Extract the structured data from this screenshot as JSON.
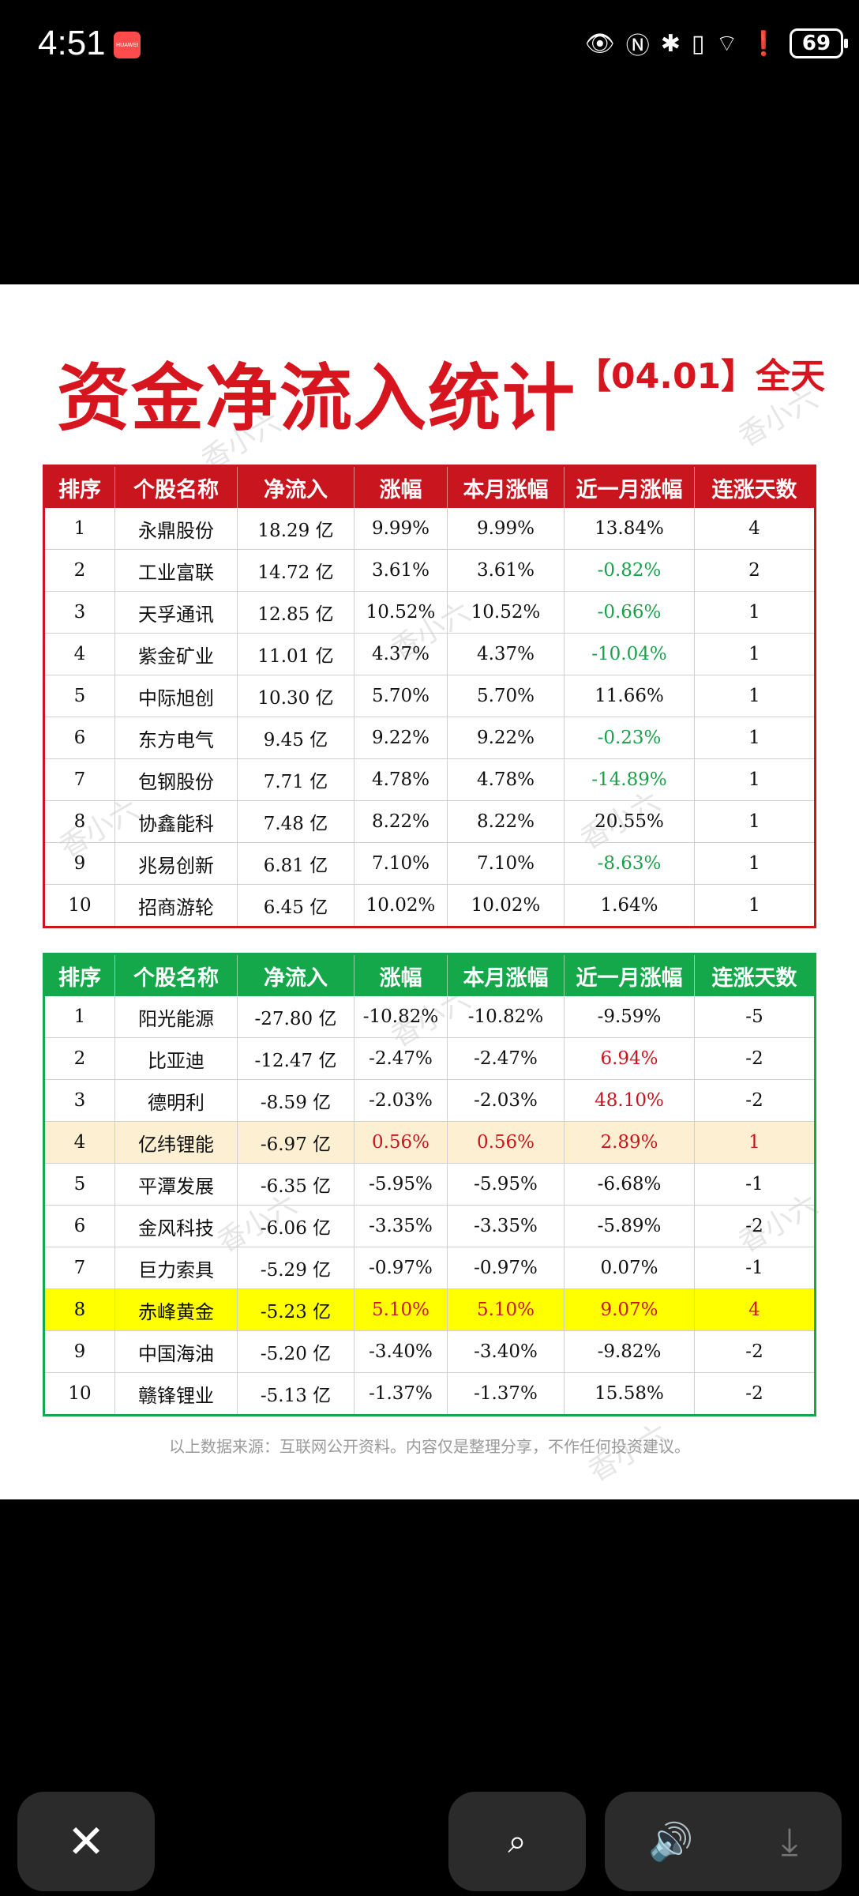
{
  "status_bar": {
    "time": "4:51",
    "app_badge": "HUAWEI",
    "icons": [
      "eye-icon",
      "nfc-icon",
      "bluetooth-icon",
      "vibrate-icon",
      "wifi-icon",
      "alert-icon"
    ],
    "battery": "69"
  },
  "image": {
    "title": "资金净流入统计",
    "date_tag": "【04.01】全天",
    "watermark": "香小六",
    "colors": {
      "title_red": "#d7151f",
      "inflow_header": "#c8151e",
      "outflow_header": "#14a84a",
      "negative_green": "#1aa04a",
      "highlight_yellow": "#ffff00",
      "highlight_beige": "#fdf0d2"
    },
    "headers": [
      "排序",
      "个股名称",
      "净流入",
      "涨幅",
      "本月涨幅",
      "近一月涨幅",
      "连涨天数"
    ],
    "inflow_rows": [
      [
        "1",
        "永鼎股份",
        "18.29 亿",
        "9.99%",
        "9.99%",
        "13.84%",
        "4"
      ],
      [
        "2",
        "工业富联",
        "14.72 亿",
        "3.61%",
        "3.61%",
        "-0.82%",
        "2"
      ],
      [
        "3",
        "天孚通讯",
        "12.85 亿",
        "10.52%",
        "10.52%",
        "-0.66%",
        "1"
      ],
      [
        "4",
        "紫金矿业",
        "11.01 亿",
        "4.37%",
        "4.37%",
        "-10.04%",
        "1"
      ],
      [
        "5",
        "中际旭创",
        "10.30 亿",
        "5.70%",
        "5.70%",
        "11.66%",
        "1"
      ],
      [
        "6",
        "东方电气",
        "9.45 亿",
        "9.22%",
        "9.22%",
        "-0.23%",
        "1"
      ],
      [
        "7",
        "包钢股份",
        "7.71 亿",
        "4.78%",
        "4.78%",
        "-14.89%",
        "1"
      ],
      [
        "8",
        "协鑫能科",
        "7.48 亿",
        "8.22%",
        "8.22%",
        "20.55%",
        "1"
      ],
      [
        "9",
        "兆易创新",
        "6.81 亿",
        "7.10%",
        "7.10%",
        "-8.63%",
        "1"
      ],
      [
        "10",
        "招商游轮",
        "6.45 亿",
        "10.02%",
        "10.02%",
        "1.64%",
        "1"
      ]
    ],
    "outflow_rows": [
      [
        "1",
        "阳光能源",
        "-27.80 亿",
        "-10.82%",
        "-10.82%",
        "-9.59%",
        "-5"
      ],
      [
        "2",
        "比亚迪",
        "-12.47 亿",
        "-2.47%",
        "-2.47%",
        "6.94%",
        "-2"
      ],
      [
        "3",
        "德明利",
        "-8.59 亿",
        "-2.03%",
        "-2.03%",
        "48.10%",
        "-2"
      ],
      [
        "4",
        "亿纬锂能",
        "-6.97 亿",
        "0.56%",
        "0.56%",
        "2.89%",
        "1"
      ],
      [
        "5",
        "平潭发展",
        "-6.35 亿",
        "-5.95%",
        "-5.95%",
        "-6.68%",
        "-1"
      ],
      [
        "6",
        "金风科技",
        "-6.06 亿",
        "-3.35%",
        "-3.35%",
        "-5.89%",
        "-2"
      ],
      [
        "7",
        "巨力索具",
        "-5.29 亿",
        "-0.97%",
        "-0.97%",
        "0.07%",
        "-1"
      ],
      [
        "8",
        "赤峰黄金",
        "-5.23 亿",
        "5.10%",
        "5.10%",
        "9.07%",
        "4"
      ],
      [
        "9",
        "中国海油",
        "-5.20 亿",
        "-3.40%",
        "-3.40%",
        "-9.82%",
        "-2"
      ],
      [
        "10",
        "赣锋锂业",
        "-5.13 亿",
        "-1.37%",
        "-1.37%",
        "15.58%",
        "-2"
      ]
    ],
    "footnote": "以上数据来源：互联网公开资料。内容仅是整理分享，不作任何投资建议。"
  },
  "controls": {
    "close": "close-icon",
    "scan": "scan-icon",
    "volume": "volume-icon",
    "download": "download-icon"
  }
}
